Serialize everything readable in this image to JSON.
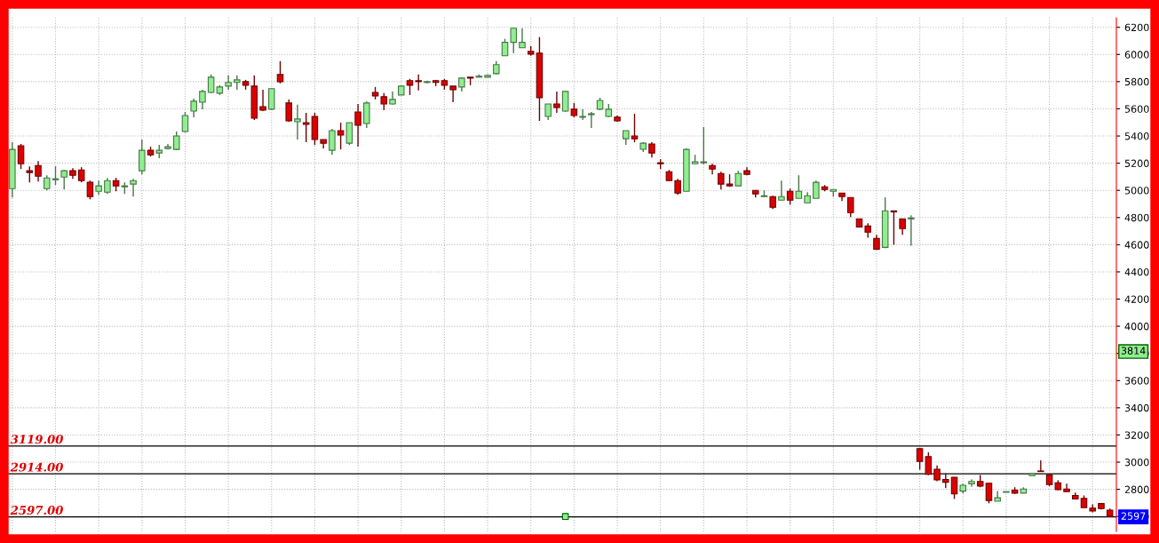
{
  "chart_data": {
    "type": "candlestick",
    "categories": [
      null,
      null,
      null,
      null,
      null,
      null,
      null,
      null,
      null,
      null,
      null,
      null,
      null,
      null,
      null,
      null,
      null,
      null,
      null,
      null,
      null,
      null,
      null,
      null,
      null,
      null,
      null,
      null,
      null,
      null,
      null,
      null,
      null,
      null,
      null,
      null,
      null,
      null,
      null,
      null,
      null,
      null,
      null,
      null,
      null,
      null,
      null,
      null,
      null,
      null,
      null,
      null,
      null,
      null,
      null,
      null,
      null,
      null,
      null,
      null,
      null,
      null,
      null,
      null,
      null,
      null,
      null,
      null,
      null,
      null,
      null,
      null,
      null,
      null,
      null,
      null,
      null,
      null,
      null,
      null,
      null,
      null,
      null,
      null,
      null,
      null,
      null,
      null,
      null,
      null,
      null,
      null,
      null,
      null,
      null,
      null,
      null,
      null,
      null,
      null,
      null,
      null,
      null,
      null,
      null,
      null,
      null,
      null,
      null,
      null,
      null,
      null,
      null,
      null,
      null,
      null,
      null,
      null,
      null,
      null,
      null,
      null,
      null,
      null,
      null,
      null,
      null,
      null
    ],
    "ohlc": [
      [
        5013,
        5354,
        4947,
        5301
      ],
      [
        5328,
        5341,
        5157,
        5196
      ],
      [
        5144,
        5177,
        5059,
        5131
      ],
      [
        5183,
        5216,
        5065,
        5104
      ],
      [
        5013,
        5111,
        5000,
        5091
      ],
      [
        5078,
        5177,
        5039,
        5085
      ],
      [
        5098,
        5150,
        5006,
        5144
      ],
      [
        5144,
        5163,
        5085,
        5111
      ],
      [
        5150,
        5170,
        5059,
        5072
      ],
      [
        5059,
        5072,
        4934,
        4954
      ],
      [
        4993,
        5072,
        4967,
        5033
      ],
      [
        4987,
        5092,
        4974,
        5072
      ],
      [
        5072,
        5092,
        4993,
        5033
      ],
      [
        5026,
        5059,
        4974,
        5033
      ],
      [
        5046,
        5085,
        4954,
        5072
      ],
      [
        5144,
        5374,
        5118,
        5295
      ],
      [
        5295,
        5321,
        5249,
        5262
      ],
      [
        5275,
        5334,
        5236,
        5295
      ],
      [
        5308,
        5341,
        5301,
        5321
      ],
      [
        5301,
        5433,
        5295,
        5400
      ],
      [
        5433,
        5577,
        5426,
        5551
      ],
      [
        5583,
        5675,
        5538,
        5656
      ],
      [
        5649,
        5741,
        5596,
        5728
      ],
      [
        5721,
        5853,
        5715,
        5833
      ],
      [
        5715,
        5774,
        5702,
        5761
      ],
      [
        5767,
        5846,
        5741,
        5794
      ],
      [
        5794,
        5846,
        5741,
        5813
      ],
      [
        5800,
        5813,
        5741,
        5774
      ],
      [
        5767,
        5846,
        5518,
        5531
      ],
      [
        5616,
        5741,
        5583,
        5590
      ],
      [
        5597,
        5748,
        5590,
        5748
      ],
      [
        5852,
        5951,
        5787,
        5800
      ],
      [
        5643,
        5669,
        5505,
        5511
      ],
      [
        5505,
        5630,
        5374,
        5525
      ],
      [
        5498,
        5570,
        5354,
        5485
      ],
      [
        5544,
        5570,
        5334,
        5374
      ],
      [
        5374,
        5374,
        5308,
        5347
      ],
      [
        5295,
        5452,
        5262,
        5439
      ],
      [
        5439,
        5498,
        5301,
        5407
      ],
      [
        5347,
        5498,
        5334,
        5498
      ],
      [
        5577,
        5636,
        5321,
        5479
      ],
      [
        5492,
        5656,
        5459,
        5643
      ],
      [
        5721,
        5761,
        5669,
        5695
      ],
      [
        5689,
        5715,
        5590,
        5636
      ],
      [
        5636,
        5728,
        5630,
        5669
      ],
      [
        5702,
        5774,
        5702,
        5767
      ],
      [
        5807,
        5820,
        5702,
        5774
      ],
      [
        5807,
        5853,
        5735,
        5800
      ],
      [
        5794,
        5807,
        5787,
        5800
      ],
      [
        5807,
        5813,
        5767,
        5794
      ],
      [
        5807,
        5820,
        5741,
        5774
      ],
      [
        5767,
        5767,
        5649,
        5741
      ],
      [
        5761,
        5833,
        5728,
        5826
      ],
      [
        5833,
        5833,
        5774,
        5826
      ],
      [
        5833,
        5853,
        5833,
        5840
      ],
      [
        5833,
        5853,
        5833,
        5846
      ],
      [
        5859,
        5951,
        5853,
        5925
      ],
      [
        5990,
        6115,
        5990,
        6089
      ],
      [
        6089,
        6193,
        6010,
        6193
      ],
      [
        6049,
        6193,
        6049,
        6089
      ],
      [
        6023,
        6062,
        5990,
        6003
      ],
      [
        6010,
        6128,
        5511,
        5682
      ],
      [
        5544,
        5636,
        5518,
        5636
      ],
      [
        5636,
        5728,
        5570,
        5610
      ],
      [
        5583,
        5728,
        5577,
        5728
      ],
      [
        5597,
        5643,
        5538,
        5551
      ],
      [
        5538,
        5597,
        5518,
        5544
      ],
      [
        5557,
        5577,
        5459,
        5564
      ],
      [
        5597,
        5682,
        5590,
        5662
      ],
      [
        5544,
        5636,
        5538,
        5597
      ],
      [
        5538,
        5551,
        5505,
        5511
      ],
      [
        5380,
        5439,
        5334,
        5439
      ],
      [
        5400,
        5564,
        5354,
        5380
      ],
      [
        5302,
        5354,
        5282,
        5347
      ],
      [
        5341,
        5354,
        5242,
        5275
      ],
      [
        5203,
        5229,
        5157,
        5196
      ],
      [
        5137,
        5150,
        5072,
        5072
      ],
      [
        5072,
        5085,
        4967,
        4980
      ],
      [
        4993,
        5308,
        4993,
        5301
      ],
      [
        5196,
        5262,
        5196,
        5210
      ],
      [
        5203,
        5466,
        5190,
        5210
      ],
      [
        5183,
        5196,
        5118,
        5157
      ],
      [
        5124,
        5137,
        5006,
        5046
      ],
      [
        5046,
        5118,
        5026,
        5033
      ],
      [
        5033,
        5144,
        5033,
        5124
      ],
      [
        5144,
        5170,
        5111,
        5118
      ],
      [
        5000,
        5000,
        4947,
        4974
      ],
      [
        4954,
        5000,
        4954,
        4960
      ],
      [
        4954,
        4960,
        4862,
        4875
      ],
      [
        4928,
        5072,
        4928,
        4954
      ],
      [
        4993,
        5013,
        4895,
        4928
      ],
      [
        4941,
        5111,
        4941,
        4993
      ],
      [
        4908,
        4987,
        4908,
        4960
      ],
      [
        4941,
        5072,
        4941,
        5059
      ],
      [
        5026,
        5039,
        4993,
        5006
      ],
      [
        4993,
        5006,
        4954,
        5006
      ],
      [
        4980,
        4980,
        4921,
        4954
      ],
      [
        4947,
        4947,
        4803,
        4836
      ],
      [
        4790,
        4790,
        4731,
        4731
      ],
      [
        4737,
        4757,
        4652,
        4692
      ],
      [
        4646,
        4672,
        4561,
        4567
      ],
      [
        4580,
        4948,
        4574,
        4849
      ],
      [
        4849,
        4849,
        4600,
        4842
      ],
      [
        4790,
        4790,
        4672,
        4718
      ],
      [
        4790,
        4816,
        4593,
        4797
      ],
      [
        3099,
        3103,
        2944,
        3006
      ],
      [
        3041,
        3073,
        2905,
        2910
      ],
      [
        2948,
        2976,
        2860,
        2869
      ],
      [
        2873,
        2916,
        2809,
        2852
      ],
      [
        2888,
        2888,
        2729,
        2766
      ],
      [
        2787,
        2841,
        2770,
        2830
      ],
      [
        2841,
        2873,
        2819,
        2858
      ],
      [
        2858,
        2905,
        2815,
        2824
      ],
      [
        2845,
        2845,
        2697,
        2718
      ],
      [
        2712,
        2787,
        2712,
        2738
      ],
      [
        2778,
        2783,
        2778,
        2783
      ],
      [
        2794,
        2815,
        2766,
        2772
      ],
      [
        2772,
        2815,
        2772,
        2802
      ],
      [
        2901,
        2916,
        2901,
        2916
      ],
      [
        2935,
        3013,
        2931,
        2931
      ],
      [
        2905,
        2905,
        2824,
        2836
      ],
      [
        2847,
        2867,
        2794,
        2798
      ],
      [
        2802,
        2841,
        2783,
        2783
      ],
      [
        2755,
        2776,
        2729,
        2729
      ],
      [
        2733,
        2755,
        2665,
        2665
      ],
      [
        2662,
        2690,
        2630,
        2641
      ],
      [
        2695,
        2695,
        2652,
        2658
      ],
      [
        2647,
        2658,
        2600,
        2600
      ]
    ],
    "colors": [
      "#90ee90",
      "#dd0000",
      "#dd0000",
      "#dd0000",
      "#90ee90",
      "#90ee90",
      "#90ee90",
      "#dd0000",
      "#dd0000",
      "#dd0000",
      "#90ee90",
      "#90ee90",
      "#dd0000",
      "#90ee90",
      "#90ee90",
      "#90ee90",
      "#dd0000",
      "#90ee90",
      "#90ee90",
      "#90ee90",
      "#90ee90",
      "#90ee90",
      "#90ee90",
      "#90ee90",
      "#90ee90",
      "#90ee90",
      "#90ee90",
      "#dd0000",
      "#dd0000",
      "#dd0000",
      "#90ee90",
      "#dd0000",
      "#dd0000",
      "#90ee90",
      "#dd0000",
      "#dd0000",
      "#dd0000",
      "#90ee90",
      "#dd0000",
      "#90ee90",
      "#dd0000",
      "#90ee90",
      "#dd0000",
      "#dd0000",
      "#90ee90",
      "#90ee90",
      "#dd0000",
      "#dd0000",
      "#90ee90",
      "#dd0000",
      "#dd0000",
      "#dd0000",
      "#90ee90",
      "#dd0000",
      "#90ee90",
      "#90ee90",
      "#90ee90",
      "#90ee90",
      "#90ee90",
      "#90ee90",
      "#dd0000",
      "#dd0000",
      "#90ee90",
      "#dd0000",
      "#90ee90",
      "#dd0000",
      "#90ee90",
      "#90ee90",
      "#90ee90",
      "#90ee90",
      "#dd0000",
      "#90ee90",
      "#dd0000",
      "#90ee90",
      "#dd0000",
      "#dd0000",
      "#dd0000",
      "#dd0000",
      "#90ee90",
      "#90ee90",
      "#90ee90",
      "#dd0000",
      "#dd0000",
      "#dd0000",
      "#90ee90",
      "#dd0000",
      "#dd0000",
      "#90ee90",
      "#dd0000",
      "#90ee90",
      "#dd0000",
      "#90ee90",
      "#90ee90",
      "#90ee90",
      "#dd0000",
      "#90ee90",
      "#dd0000",
      "#dd0000",
      "#dd0000",
      "#dd0000",
      "#dd0000",
      "#90ee90",
      "#dd0000",
      "#dd0000",
      "#90ee90",
      "#dd0000",
      "#dd0000",
      "#dd0000",
      "#dd0000",
      "#dd0000",
      "#90ee90",
      "#90ee90",
      "#dd0000",
      "#dd0000",
      "#90ee90",
      "#90ee90",
      "#dd0000",
      "#90ee90",
      "#90ee90",
      "#dd0000",
      "#dd0000",
      "#dd0000",
      "#dd0000",
      "#dd0000",
      "#dd0000",
      "#dd0000",
      "#dd0000",
      "#dd0000"
    ],
    "series": [
      {
        "type": "scatter",
        "color": "#90ee90",
        "marker": "square",
        "values": [
          null,
          null,
          null,
          null,
          null,
          null,
          null,
          null,
          null,
          null,
          null,
          null,
          null,
          null,
          null,
          null,
          null,
          null,
          null,
          null,
          null,
          null,
          null,
          null,
          null,
          null,
          null,
          null,
          null,
          null,
          null,
          null,
          null,
          null,
          null,
          null,
          null,
          null,
          null,
          null,
          null,
          null,
          null,
          null,
          null,
          null,
          null,
          null,
          null,
          null,
          null,
          null,
          null,
          null,
          null,
          null,
          null,
          null,
          null,
          null,
          null,
          null,
          null,
          null,
          2600,
          null,
          null,
          null,
          null,
          null,
          null,
          null,
          null,
          null,
          null,
          null,
          null,
          null,
          null,
          null,
          null,
          null,
          null,
          null,
          null,
          null,
          null,
          null,
          null,
          null,
          null,
          null,
          null,
          null,
          null,
          null,
          null,
          null,
          null,
          null,
          null,
          null,
          null,
          null,
          null,
          null,
          null,
          null,
          null,
          null,
          null,
          null,
          null,
          null,
          null,
          null,
          null,
          null,
          null,
          null,
          null,
          null,
          null,
          null,
          null,
          null,
          null,
          null
        ]
      }
    ],
    "ylim": [
      2490,
      6270
    ],
    "yticks": [
      2600,
      2800,
      3000,
      3200,
      3400,
      3600,
      3800,
      4000,
      4200,
      4400,
      4600,
      4800,
      5000,
      5200,
      5400,
      5600,
      5800,
      6000,
      6200
    ],
    "grid": true,
    "tick_labels": "y",
    "ref_lines": [
      {
        "axis": "y",
        "value": 3119,
        "label": "3119.00",
        "color": "#000000"
      },
      {
        "axis": "y",
        "value": 2914,
        "label": "2914.00",
        "color": "#000000"
      },
      {
        "axis": "y",
        "value": 2597,
        "label": "2597.00",
        "color": "#000000"
      }
    ],
    "annotations": [
      {
        "text": "3814",
        "y": 3814
      },
      {
        "text": "2597",
        "y": 2597
      }
    ]
  }
}
